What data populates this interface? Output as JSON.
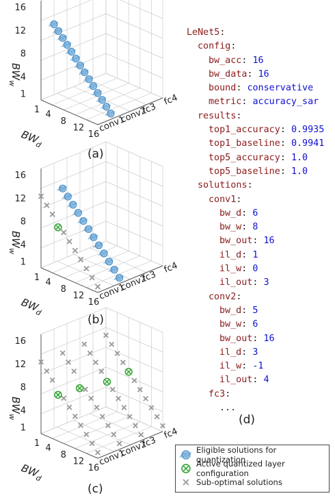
{
  "figure": {
    "panels": [
      {
        "id": "a",
        "caption": "(a)"
      },
      {
        "id": "b",
        "caption": "(b)"
      },
      {
        "id": "c",
        "caption": "(c)"
      }
    ],
    "axes": {
      "bw_w_label": "BW",
      "bw_w_sub": "w",
      "bw_d_label": "BW",
      "bw_d_sub": "d",
      "bw_w_ticks": [
        "1",
        "4",
        "8",
        "12",
        "16"
      ],
      "bw_d_ticks": [
        "1",
        "4",
        "8",
        "12",
        "16"
      ],
      "layer_ticks": [
        "conv1",
        "conv2",
        "fc3",
        "fc4"
      ]
    },
    "yaml_caption": "(d)",
    "yaml": [
      {
        "indent": 0,
        "key": "LeNet5",
        "value": ""
      },
      {
        "indent": 1,
        "key": "config",
        "value": ""
      },
      {
        "indent": 2,
        "key": "bw_acc",
        "value": "16"
      },
      {
        "indent": 2,
        "key": "bw_data",
        "value": "16"
      },
      {
        "indent": 2,
        "key": "bound",
        "value": "conservative"
      },
      {
        "indent": 2,
        "key": "metric",
        "value": "accuracy_sar"
      },
      {
        "indent": 1,
        "key": "results",
        "value": ""
      },
      {
        "indent": 2,
        "key": "top1_accuracy",
        "value": "0.9935"
      },
      {
        "indent": 2,
        "key": "top1_baseline",
        "value": "0.9941"
      },
      {
        "indent": 2,
        "key": "top5_accuracy",
        "value": "1.0"
      },
      {
        "indent": 2,
        "key": "top5_baseline",
        "value": "1.0"
      },
      {
        "indent": 1,
        "key": "solutions",
        "value": ""
      },
      {
        "indent": 2,
        "key": "conv1",
        "value": ""
      },
      {
        "indent": 3,
        "key": "bw_d",
        "value": "6"
      },
      {
        "indent": 3,
        "key": "bw_w",
        "value": "8"
      },
      {
        "indent": 3,
        "key": "bw_out",
        "value": "16"
      },
      {
        "indent": 3,
        "key": "il_d",
        "value": "1"
      },
      {
        "indent": 3,
        "key": "il_w",
        "value": "0"
      },
      {
        "indent": 3,
        "key": "il_out",
        "value": "3"
      },
      {
        "indent": 2,
        "key": "conv2",
        "value": ""
      },
      {
        "indent": 3,
        "key": "bw_d",
        "value": "5"
      },
      {
        "indent": 3,
        "key": "bw_w",
        "value": "6"
      },
      {
        "indent": 3,
        "key": "bw_out",
        "value": "16"
      },
      {
        "indent": 3,
        "key": "il_d",
        "value": "3"
      },
      {
        "indent": 3,
        "key": "il_w",
        "value": "-1"
      },
      {
        "indent": 3,
        "key": "il_out",
        "value": "4"
      },
      {
        "indent": 2,
        "key": "fc3",
        "value": ""
      },
      {
        "indent": 3,
        "key": "...",
        "value": null
      }
    ],
    "legend": [
      {
        "label": "Eligible solutions for quantization",
        "symbol": "hatched-circle",
        "color": "#4a90c8"
      },
      {
        "label": "Active quantized layer configuration",
        "symbol": "circled-x",
        "color": "#2ca02c"
      },
      {
        "label": "Sub-optimal solutions",
        "symbol": "x-mark",
        "color": "#999999"
      }
    ],
    "colors": {
      "eligible": "#4a90c8",
      "active": "#2ca02c",
      "suboptimal": "#999999",
      "grid": "#cccccc",
      "key": "#8b1a1a",
      "value": "#1010d0"
    }
  }
}
